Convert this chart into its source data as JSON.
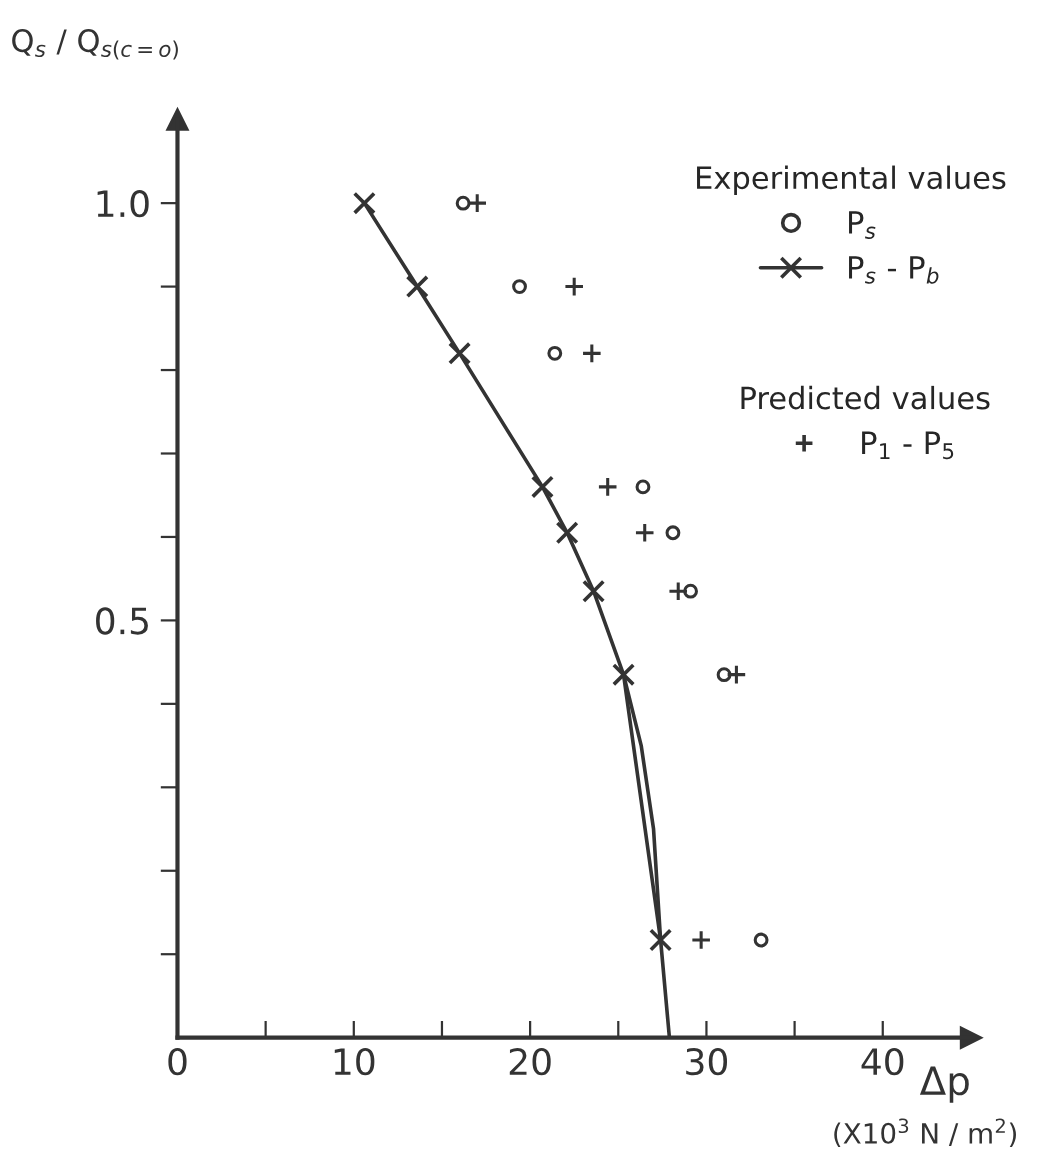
{
  "chart_data": {
    "type": "scatter",
    "ylabel": "Q$_{s}$ / Q$_{s(c=o)}$",
    "xlabel": "Δp",
    "legend_title": "Experimental values",
    "annotations": [
      "Predicted values",
      "(X10$^{3}$ N / m$^{2}$)"
    ],
    "xlim": [
      0,
      45
    ],
    "ylim": [
      0,
      1.1
    ],
    "xticks": [
      0,
      {
        "value": 5,
        "label": null
      },
      10,
      {
        "value": 15,
        "label": null
      },
      20,
      {
        "value": 25,
        "label": null
      },
      30,
      {
        "value": 35,
        "label": null
      },
      40
    ],
    "yticks": [
      {
        "value": 0.1,
        "label": null
      },
      {
        "value": 0.2,
        "label": null
      },
      {
        "value": 0.3,
        "label": null
      },
      {
        "value": 0.4,
        "label": null
      },
      {
        "value": 0.5,
        "label": "0.5"
      },
      {
        "value": 0.6,
        "label": null
      },
      {
        "value": 0.7,
        "label": null
      },
      {
        "value": 0.8,
        "label": null
      },
      {
        "value": 0.9,
        "label": null
      },
      {
        "value": 1.0,
        "label": "1.0"
      }
    ],
    "grid": false,
    "legend": "top right",
    "series": [
      {
        "name": "P$_{s}$",
        "marker": "circle",
        "color": "#333333",
        "x": [
          16.2,
          19.4,
          21.4,
          26.4,
          28.1,
          29.1,
          31.0,
          33.1
        ],
        "values": [
          1.0,
          0.9,
          0.82,
          0.66,
          0.605,
          0.535,
          0.435,
          0.117
        ]
      },
      {
        "name": "P$_{s}$ - P$_{b}$",
        "type": "line",
        "marker": "cross",
        "color": "#333333",
        "x": [
          10.6,
          13.6,
          16.0,
          20.7,
          22.1,
          23.6,
          25.3,
          27.4
        ],
        "values": [
          1.0,
          0.9,
          0.82,
          0.66,
          0.605,
          0.535,
          0.435,
          0.117
        ]
      },
      {
        "type": "line",
        "marker": "none",
        "color": "#333333",
        "x": [
          25.3,
          26.3,
          27.0,
          27.4,
          27.9
        ],
        "values": [
          0.435,
          0.35,
          0.25,
          0.117,
          0.0
        ]
      },
      {
        "name": "P$_{1}$ - P$_{5}$",
        "marker": "plus",
        "color": "#333333",
        "x": [
          17.0,
          22.5,
          23.5,
          24.4,
          26.5,
          28.4,
          31.7,
          29.7
        ],
        "values": [
          1.0,
          0.9,
          0.82,
          0.66,
          0.605,
          0.535,
          0.435,
          0.117
        ]
      }
    ]
  }
}
